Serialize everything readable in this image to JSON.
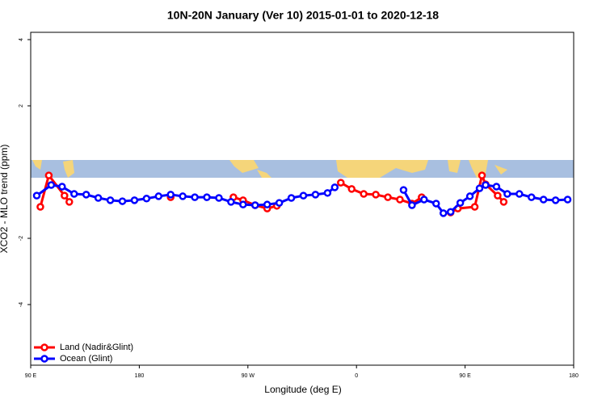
{
  "chart_data": {
    "type": "line",
    "title": "10N-20N January (Ver 10)   2015-01-01 to 2020-12-18",
    "x_label": "Longitude (deg E)",
    "y_label": "XCO2 - MLO trend (ppm)",
    "xlim": [
      90,
      540
    ],
    "ylim": [
      -5.83,
      4.22
    ],
    "xticks": [
      {
        "value": 90,
        "label": "90 E"
      },
      {
        "value": 180,
        "label": "180"
      },
      {
        "value": 270,
        "label": "90 W"
      },
      {
        "value": 360,
        "label": "0"
      },
      {
        "value": 450,
        "label": "90 E"
      },
      {
        "value": 540,
        "label": "180"
      }
    ],
    "yticks": [
      -4,
      -2,
      2,
      4
    ],
    "legend_position": "bottom-left",
    "series": [
      {
        "name": "Land (Nadir&Glint)",
        "color": "#ff0000",
        "x": [
          98,
          105,
          118,
          122,
          null,
          206,
          null,
          258,
          266,
          276,
          286,
          294,
          null,
          347,
          356,
          366,
          376,
          386,
          396,
          406,
          414,
          null,
          438,
          444,
          458,
          464,
          467,
          477,
          482
        ],
        "values": [
          -1.05,
          -0.1,
          -0.71,
          -0.9,
          null,
          -0.76,
          null,
          -0.76,
          -0.85,
          -1.0,
          -1.1,
          -1.02,
          null,
          -0.32,
          -0.51,
          -0.66,
          -0.68,
          -0.76,
          -0.83,
          -0.95,
          -0.76,
          null,
          -1.22,
          -1.1,
          -1.05,
          -0.1,
          -0.37,
          -0.71,
          -0.9
        ]
      },
      {
        "name": "Ocean (Glint)",
        "color": "#0000ff",
        "x": [
          95,
          107,
          116,
          126,
          136,
          146,
          156,
          166,
          176,
          186,
          196,
          206,
          216,
          226,
          236,
          246,
          256,
          266,
          276,
          286,
          296,
          306,
          316,
          326,
          336,
          342,
          null,
          399,
          406,
          416,
          426,
          432,
          438,
          446,
          454,
          462,
          467,
          476,
          485,
          495,
          505,
          515,
          525,
          535
        ],
        "values": [
          -0.71,
          -0.39,
          -0.44,
          -0.66,
          -0.68,
          -0.78,
          -0.85,
          -0.88,
          -0.85,
          -0.8,
          -0.73,
          -0.68,
          -0.73,
          -0.76,
          -0.76,
          -0.78,
          -0.9,
          -0.98,
          -1.0,
          -0.98,
          -0.93,
          -0.78,
          -0.71,
          -0.68,
          -0.63,
          -0.46,
          null,
          -0.54,
          -1.0,
          -0.83,
          -0.95,
          -1.24,
          -1.2,
          -0.93,
          -0.73,
          -0.49,
          -0.39,
          -0.44,
          -0.66,
          -0.66,
          -0.76,
          -0.83,
          -0.85,
          -0.83
        ]
      }
    ]
  }
}
